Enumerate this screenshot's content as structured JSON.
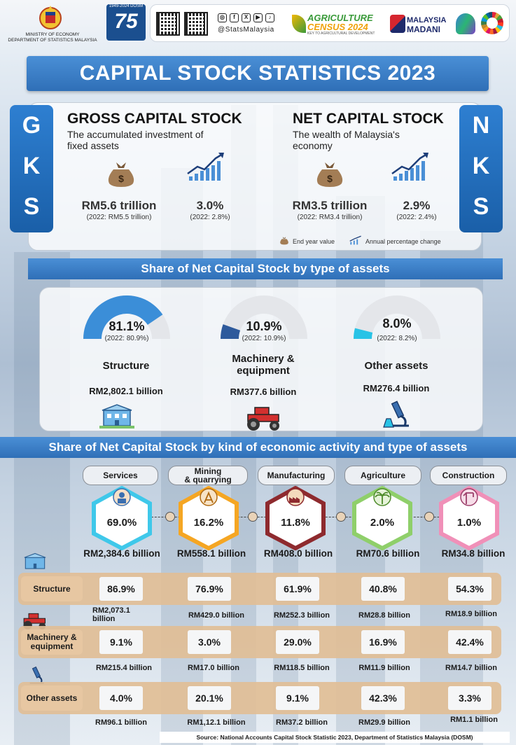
{
  "header": {
    "ministry_line1": "MINISTRY OF ECONOMY",
    "ministry_line2": "DEPARTMENT OF STATISTICS MALAYSIA",
    "dosm_badge_years": "1949-2024 DOSM",
    "dosm_badge_number": "75",
    "social_handle": "@StatsMalaysia",
    "census_line1": "AGRICULTURE",
    "census_line2": "CENSUS 2024",
    "census_tagline": "KEY TO AGRICULTURAL DEVELOPMENT",
    "madani_line1": "MALAYSIA",
    "madani_line2": "MADANI"
  },
  "title": "CAPITAL STOCK STATISTICS 2023",
  "gks": {
    "tab_letters": [
      "G",
      "K",
      "S"
    ],
    "title": "GROSS CAPITAL STOCK",
    "description_line1": "The accumulated investment of",
    "description_line2": "fixed assets",
    "value": "RM5.6 trillion",
    "value_prev": "(2022: RM5.5 trillion)",
    "change": "3.0%",
    "change_prev": "(2022: 2.8%)"
  },
  "nks": {
    "tab_letters": [
      "N",
      "K",
      "S"
    ],
    "title": "NET CAPITAL STOCK",
    "description_line1": "The wealth of Malaysia's",
    "description_line2": "economy",
    "value": "RM3.5 trillion",
    "value_prev": "(2022: RM3.4 trillion)",
    "change": "2.9%",
    "change_prev": "(2022: 2.4%)"
  },
  "legend": {
    "end_year": "End year value",
    "annual_change": "Annual percentage change"
  },
  "assets_section": {
    "title": "Share of Net Capital Stock by type of assets",
    "items": [
      {
        "pct": "81.1%",
        "share": 81.1,
        "prev": "(2022: 80.9%)",
        "name_line1": "Structure",
        "name_line2": "",
        "value": "RM2,802.1 billion",
        "color": "#3b8ed8"
      },
      {
        "pct": "10.9%",
        "share": 10.9,
        "prev": "(2022: 10.9%)",
        "name_line1": "Machinery &",
        "name_line2": "equipment",
        "value": "RM377.6 billion",
        "color": "#2e5a9c"
      },
      {
        "pct": "8.0%",
        "share": 8.0,
        "prev": "(2022: 8.2%)",
        "name_line1": "Other assets",
        "name_line2": "",
        "value": "RM276.4 billion",
        "color": "#29c3e6"
      }
    ]
  },
  "activity_section": {
    "title": "Share of Net Capital Stock by kind of economic activity and type of assets",
    "activities": [
      {
        "name_line1": "Services",
        "name_line2": "",
        "pct": "69.0%",
        "value": "RM2,384.6 billion",
        "color": "#3fc8ea"
      },
      {
        "name_line1": "Mining",
        "name_line2": "& quarrying",
        "pct": "16.2%",
        "value": "RM558.1 billion",
        "color": "#f5a623"
      },
      {
        "name_line1": "Manufacturing",
        "name_line2": "",
        "pct": "11.8%",
        "value": "RM408.0 billion",
        "color": "#8e2a2e"
      },
      {
        "name_line1": "Agriculture",
        "name_line2": "",
        "pct": "2.0%",
        "value": "RM70.6 billion",
        "color": "#8fcf6a"
      },
      {
        "name_line1": "Construction",
        "name_line2": "",
        "pct": "1.0%",
        "value": "RM34.8 billion",
        "color": "#f090b8"
      }
    ],
    "rows": [
      {
        "label_line1": "Structure",
        "label_line2": "",
        "cells": [
          {
            "pct": "86.9%",
            "val1": "RM2,073.1",
            "val2": "billion"
          },
          {
            "pct": "76.9%",
            "val1": "RM429.0 billion",
            "val2": ""
          },
          {
            "pct": "61.9%",
            "val1": "RM252.3 billion",
            "val2": ""
          },
          {
            "pct": "40.8%",
            "val1": "RM28.8 billion",
            "val2": ""
          },
          {
            "pct": "54.3%",
            "val1": "RM18.9 billion",
            "val2": ""
          }
        ]
      },
      {
        "label_line1": "Machinery &",
        "label_line2": "equipment",
        "cells": [
          {
            "pct": "9.1%",
            "val1": "RM215.4 billion",
            "val2": ""
          },
          {
            "pct": "3.0%",
            "val1": "RM17.0 billion",
            "val2": ""
          },
          {
            "pct": "29.0%",
            "val1": "RM118.5 billion",
            "val2": ""
          },
          {
            "pct": "16.9%",
            "val1": "RM11.9 billion",
            "val2": ""
          },
          {
            "pct": "42.4%",
            "val1": "RM14.7 billion",
            "val2": ""
          }
        ]
      },
      {
        "label_line1": "Other assets",
        "label_line2": "",
        "cells": [
          {
            "pct": "4.0%",
            "val1": "RM96.1 billion",
            "val2": ""
          },
          {
            "pct": "20.1%",
            "val1": "RM1,12.1 billion",
            "val2": ""
          },
          {
            "pct": "9.1%",
            "val1": "RM37.2 billion",
            "val2": ""
          },
          {
            "pct": "42.3%",
            "val1": "RM29.9 billion",
            "val2": ""
          },
          {
            "pct": "3.3%",
            "val1": "RM1.1 billion",
            "val2": ""
          }
        ]
      }
    ]
  },
  "source": "Source: National Accounts Capital Stock Statistic 2023, Department of Statistics Malaysia (DOSM)"
}
